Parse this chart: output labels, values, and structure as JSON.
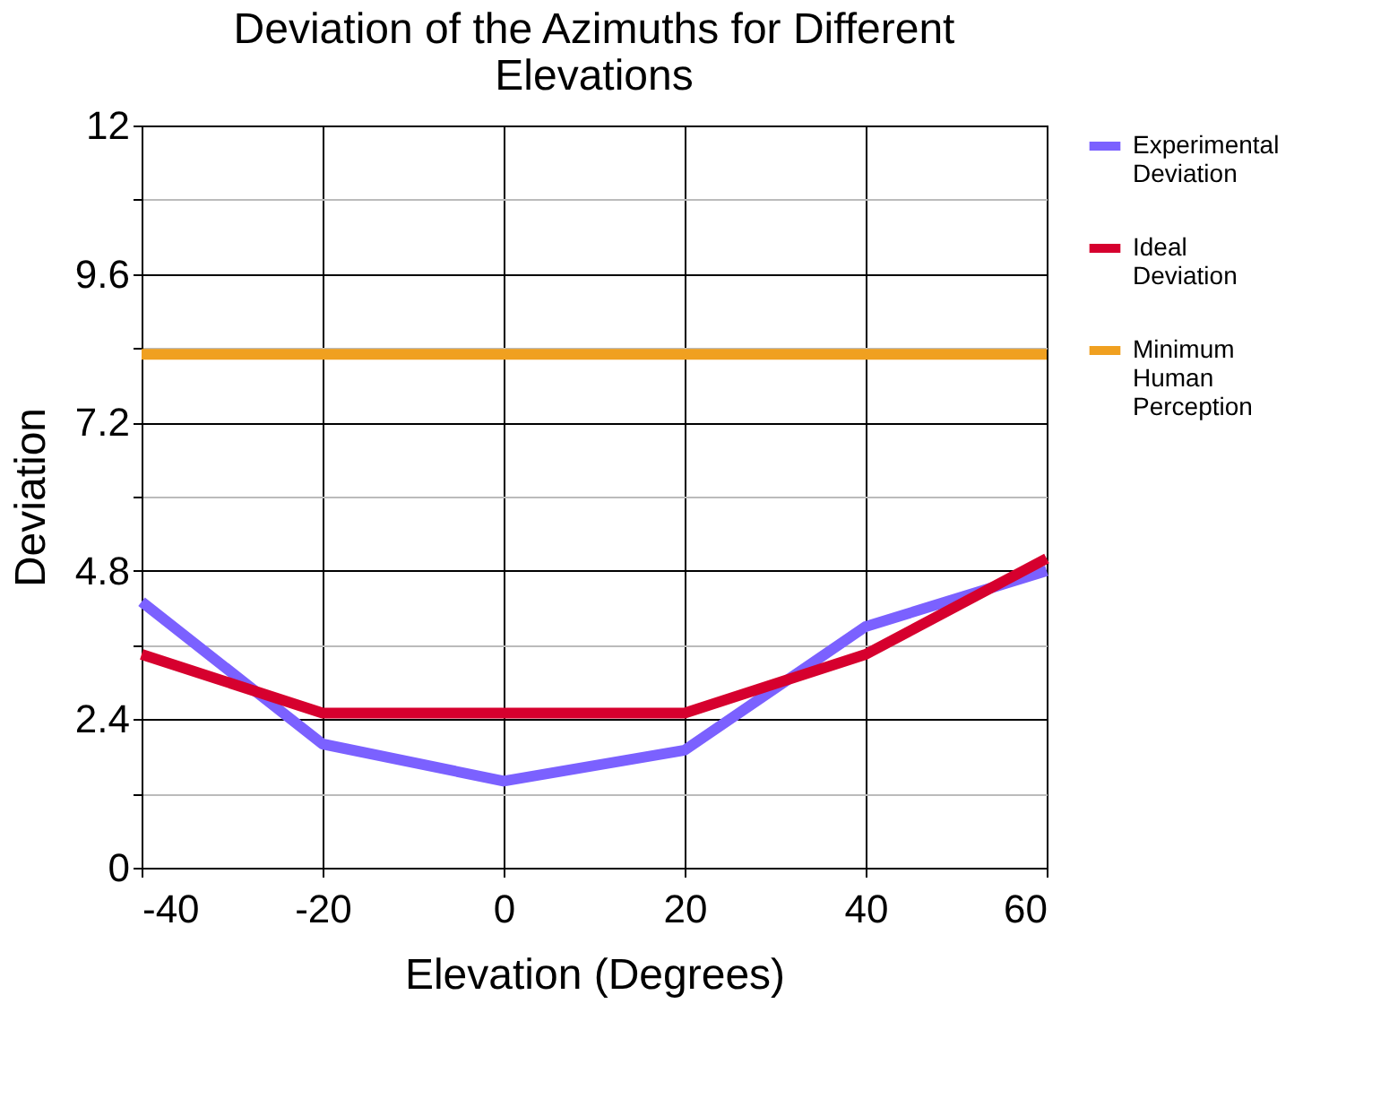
{
  "chart_data": {
    "type": "line",
    "title": "Deviation of the Azimuths for Different Elevations",
    "xlabel": "Elevation (Degrees)",
    "ylabel": "Deviation",
    "x": [
      -40,
      -20,
      0,
      20,
      40,
      60
    ],
    "series": [
      {
        "name": "Experimental Deviation",
        "color": "#7b61ff",
        "values": [
          4.3,
          2.0,
          1.4,
          1.9,
          3.9,
          4.8
        ]
      },
      {
        "name": "Ideal Deviation",
        "color": "#d6002e",
        "values": [
          3.45,
          2.5,
          2.5,
          2.5,
          3.45,
          5.0
        ]
      },
      {
        "name": "Minimum Human Perception",
        "color": "#f0a020",
        "values": [
          8.3,
          8.3,
          8.3,
          8.3,
          8.3,
          8.3
        ]
      }
    ],
    "xlim": [
      -40,
      60
    ],
    "xticks": [
      -40,
      -20,
      0,
      20,
      40,
      60
    ],
    "ylim": [
      0,
      12
    ],
    "yticks": [
      0,
      {
        "value": 1.2,
        "label": null
      },
      2.4,
      {
        "value": 3.6,
        "label": null
      },
      4.8,
      {
        "value": 6.0,
        "label": null
      },
      7.2,
      {
        "value": 8.4,
        "label": null
      },
      9.6,
      {
        "value": 10.8,
        "label": null
      },
      12
    ],
    "grid": true,
    "legend": "right",
    "marker": "none",
    "line_style": "solid"
  }
}
